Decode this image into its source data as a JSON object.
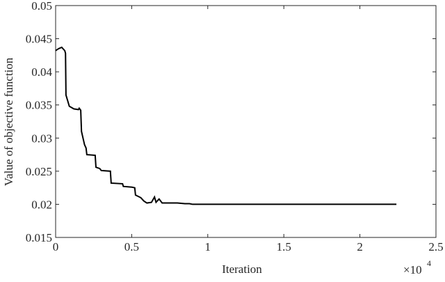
{
  "chart_data": {
    "type": "line",
    "xlabel": "Iteration",
    "ylabel": "Value of objective function",
    "x_scale_label": "×10",
    "x_scale_exponent": "4",
    "color": "#000000",
    "x": [
      0,
      0.02,
      0.04,
      0.06,
      0.065,
      0.068,
      0.09,
      0.12,
      0.15,
      0.155,
      0.165,
      0.17,
      0.19,
      0.2,
      0.205,
      0.26,
      0.265,
      0.29,
      0.3,
      0.36,
      0.365,
      0.44,
      0.445,
      0.5,
      0.52,
      0.525,
      0.56,
      0.58,
      0.6,
      0.63,
      0.65,
      0.66,
      0.68,
      0.7,
      0.75,
      0.8,
      0.85,
      0.88,
      0.9,
      1.5,
      2.24
    ],
    "values": [
      0.0432,
      0.0435,
      0.0437,
      0.0432,
      0.0428,
      0.0365,
      0.0348,
      0.0344,
      0.0343,
      0.0345,
      0.0342,
      0.031,
      0.029,
      0.0285,
      0.0275,
      0.0274,
      0.0256,
      0.0254,
      0.0251,
      0.025,
      0.0232,
      0.0231,
      0.0227,
      0.0226,
      0.0225,
      0.0214,
      0.021,
      0.0205,
      0.0202,
      0.0203,
      0.0211,
      0.0203,
      0.0208,
      0.0202,
      0.0202,
      0.0202,
      0.0201,
      0.0201,
      0.02,
      0.02,
      0.02
    ],
    "xlim": [
      0,
      2.5
    ],
    "xticks": [
      0,
      0.5,
      1,
      1.5,
      2,
      2.5
    ],
    "ylim": [
      0.015,
      0.05
    ],
    "yticks": [
      0.015,
      0.02,
      0.025,
      0.03,
      0.035,
      0.04,
      0.045,
      0.05
    ]
  }
}
